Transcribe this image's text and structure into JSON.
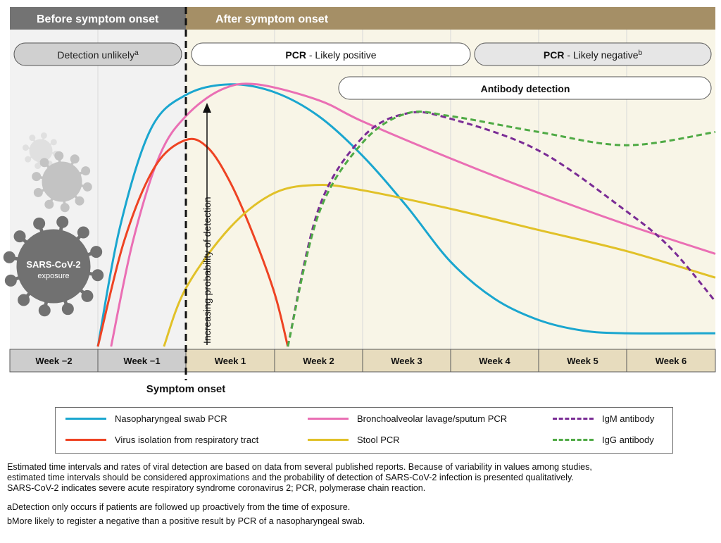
{
  "chart_data": {
    "type": "line",
    "phases": {
      "before": "Before symptom onset",
      "after": "After symptom onset"
    },
    "windows": [
      {
        "id": "detection-unlikely",
        "label": "Detection unlikely",
        "sup": "a",
        "start": -2,
        "end": 0
      },
      {
        "id": "pcr-likely-positive",
        "label_bold": "PCR",
        "label_rest": " - Likely positive",
        "start": 0,
        "end": 3.25
      },
      {
        "id": "pcr-likely-negative",
        "label_bold": "PCR",
        "label_rest": " - Likely negative",
        "sup": "b",
        "start": 3.3,
        "end": 6
      },
      {
        "id": "antibody-detection",
        "label": "Antibody detection",
        "start": 1.7,
        "end": 6
      }
    ],
    "x_categories": [
      "Week −2",
      "Week −1",
      "Week 1",
      "Week 2",
      "Week 3",
      "Week 4",
      "Week 5",
      "Week 6"
    ],
    "xlim": [
      -2,
      6
    ],
    "ylim": [
      0,
      100
    ],
    "symptom_onset_label": "Symptom onset",
    "ylabel": "Increasing probability of detection",
    "exposure_label_line1": "SARS-CoV-2",
    "exposure_label_line2": "exposure",
    "series": [
      {
        "name": "Nasopharyngeal swab PCR",
        "color": "#1aa6cf",
        "dash": false,
        "points": [
          [
            -1,
            0
          ],
          [
            -0.75,
            45
          ],
          [
            -0.4,
            82
          ],
          [
            0,
            95
          ],
          [
            0.5,
            99
          ],
          [
            1,
            96
          ],
          [
            1.5,
            87
          ],
          [
            2,
            72
          ],
          [
            2.5,
            53
          ],
          [
            3,
            32
          ],
          [
            3.5,
            18
          ],
          [
            4,
            10
          ],
          [
            4.5,
            6
          ],
          [
            5,
            5
          ],
          [
            6,
            5
          ]
        ]
      },
      {
        "name": "Bronchoalveolar lavage/sputum PCR",
        "color": "#ea6fb4",
        "dash": false,
        "points": [
          [
            -0.85,
            0
          ],
          [
            -0.6,
            40
          ],
          [
            -0.3,
            72
          ],
          [
            0,
            87
          ],
          [
            0.4,
            97
          ],
          [
            0.8,
            99
          ],
          [
            1.5,
            93
          ],
          [
            2,
            85
          ],
          [
            3,
            71
          ],
          [
            4,
            58
          ],
          [
            5,
            46
          ],
          [
            6,
            35
          ]
        ]
      },
      {
        "name": "Virus isolation from respiratory tract",
        "color": "#ee4323",
        "dash": false,
        "points": [
          [
            -1,
            0
          ],
          [
            -0.7,
            40
          ],
          [
            -0.35,
            68
          ],
          [
            0,
            78
          ],
          [
            0.25,
            75
          ],
          [
            0.5,
            62
          ],
          [
            0.75,
            43
          ],
          [
            1,
            20
          ],
          [
            1.15,
            0
          ]
        ]
      },
      {
        "name": "Stool PCR",
        "color": "#e1c128",
        "dash": false,
        "points": [
          [
            -0.25,
            0
          ],
          [
            0,
            22
          ],
          [
            0.5,
            45
          ],
          [
            1,
            58
          ],
          [
            1.5,
            61
          ],
          [
            2,
            59
          ],
          [
            3,
            52
          ],
          [
            4,
            44
          ],
          [
            5,
            36
          ],
          [
            6,
            26
          ]
        ]
      },
      {
        "name": "IgM antibody",
        "color": "#7a2c95",
        "dash": true,
        "points": [
          [
            1.15,
            0
          ],
          [
            1.5,
            52
          ],
          [
            2,
            79
          ],
          [
            2.5,
            88
          ],
          [
            3,
            86
          ],
          [
            4,
            74
          ],
          [
            5,
            51
          ],
          [
            5.5,
            37
          ],
          [
            6,
            17
          ]
        ]
      },
      {
        "name": "IgG antibody",
        "color": "#4faa45",
        "dash": true,
        "points": [
          [
            1.15,
            0
          ],
          [
            1.5,
            50
          ],
          [
            2,
            77
          ],
          [
            2.5,
            88
          ],
          [
            3,
            87
          ],
          [
            4,
            81
          ],
          [
            5,
            76
          ],
          [
            6,
            81
          ]
        ]
      }
    ]
  },
  "legend": {
    "items": [
      {
        "name": "Nasopharyngeal swab PCR",
        "color": "#1aa6cf",
        "dash": false
      },
      {
        "name": "Virus isolation from respiratory tract",
        "color": "#ee4323",
        "dash": false
      },
      {
        "name": "Bronchoalveolar lavage/sputum PCR",
        "color": "#ea6fb4",
        "dash": false
      },
      {
        "name": "Stool PCR",
        "color": "#e1c128",
        "dash": false
      },
      {
        "name": "IgM antibody",
        "color": "#7a2c95",
        "dash": true
      },
      {
        "name": "IgG antibody",
        "color": "#4faa45",
        "dash": true
      }
    ]
  },
  "notes": {
    "line1": "Estimated time intervals and rates of viral detection are based on data from several published reports. Because of variability in values among studies,",
    "line2": "estimated time intervals should be considered approximations and the probability of detection of SARS-CoV-2 infection is presented qualitatively.",
    "line3": "SARS-CoV-2 indicates severe acute respiratory syndrome coronavirus 2; PCR, polymerase chain reaction.",
    "footnote_a": "aDetection only occurs if patients are followed up proactively from the time of exposure.",
    "footnote_b": "bMore likely to register a negative than a positive result by PCR of a nasopharyngeal swab."
  },
  "colors": {
    "before_header": "#737373",
    "after_header": "#a58f66",
    "before_bg": "#f2f2f2",
    "after_bg": "#f8f5e7",
    "axis_before": "#cdcdcd",
    "axis_after": "#e7dcbe"
  }
}
